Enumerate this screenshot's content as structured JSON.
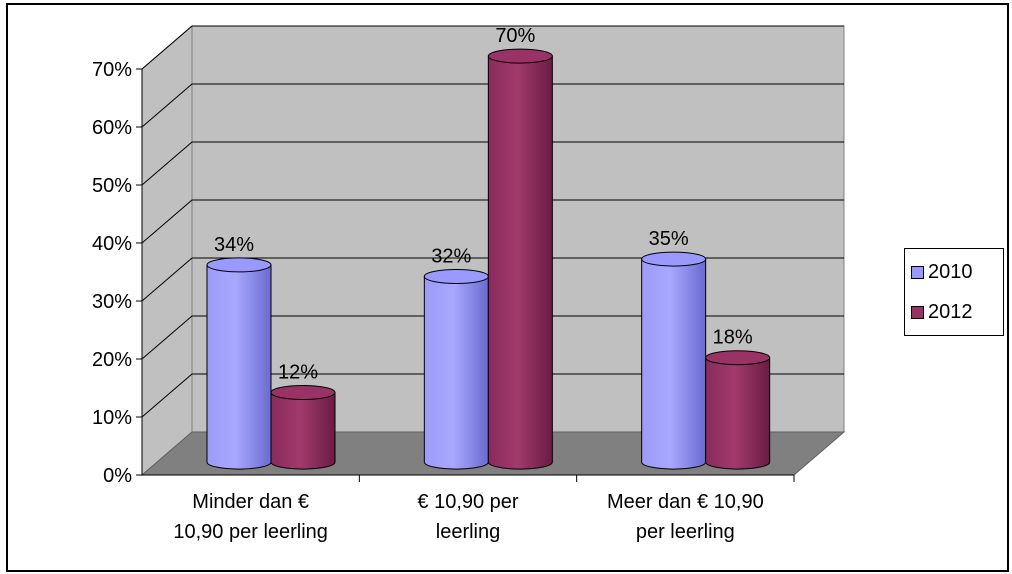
{
  "chart_data": {
    "type": "bar",
    "title": "",
    "xlabel": "",
    "ylabel": "",
    "categories": [
      "Minder dan € 10,90 per leerling",
      "€ 10,90 per leerling",
      "Meer dan € 10,90 per leerling"
    ],
    "category_lines": [
      [
        "Minder dan €",
        "10,90 per leerling"
      ],
      [
        "€ 10,90 per",
        "leerling"
      ],
      [
        "Meer dan € 10,90",
        "per leerling"
      ]
    ],
    "series": [
      {
        "name": "2010",
        "values": [
          34,
          32,
          35
        ],
        "labels": [
          "34%",
          "32%",
          "35%"
        ],
        "color": "#9999ff"
      },
      {
        "name": "2012",
        "values": [
          12,
          70,
          18
        ],
        "labels": [
          "12%",
          "70%",
          "18%"
        ],
        "color": "#993366"
      }
    ],
    "y_ticks": [
      "0%",
      "10%",
      "20%",
      "30%",
      "40%",
      "50%",
      "60%",
      "70%"
    ],
    "ylim": [
      0,
      70
    ],
    "grid": true,
    "legend_position": "right"
  }
}
